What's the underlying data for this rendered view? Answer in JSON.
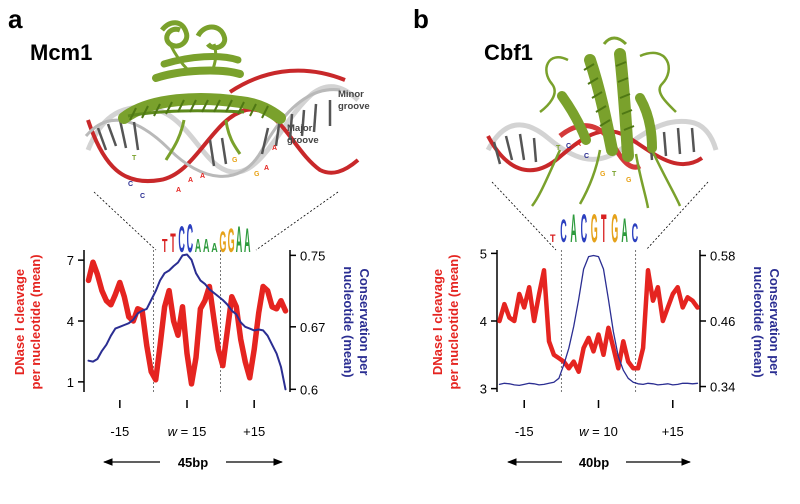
{
  "colors": {
    "dnase": "#e52420",
    "conservation": "#2b2e92",
    "protein": "#7aa12c",
    "dna_strand": "#c7c7c7",
    "dna_highlight": "#c8282a"
  },
  "panels": [
    {
      "letter": "a",
      "title": "Mcm1",
      "structure": {
        "protein_icon": "protein-helix-icon",
        "minor_groove_line1": "Minor",
        "minor_groove_line2": "groove",
        "major_groove_line1": "Major",
        "major_groove_line2": "groove",
        "bases": [
          "T",
          "C",
          "C",
          "A",
          "A",
          "A",
          "G",
          "G",
          "A",
          "A"
        ],
        "motif_logo": [
          "T",
          "T",
          "C",
          "C",
          "A",
          "A",
          "A",
          "G",
          "G",
          "A",
          "A"
        ]
      },
      "bottom_label": "45bp"
    },
    {
      "letter": "b",
      "title": "Cbf1",
      "structure": {
        "protein_icon": "protein-helix-icon",
        "bases": [
          "T",
          "C",
          "A",
          "C",
          "G",
          "T",
          "G"
        ],
        "motif_logo": [
          "T",
          "C",
          "A",
          "C",
          "G",
          "T",
          "G",
          "A",
          "C"
        ]
      },
      "bottom_label": "40bp"
    }
  ],
  "chart_data": [
    {
      "type": "line",
      "panel": "a",
      "title": "Mcm1",
      "ylabel_left_line1": "DNase I cleavage",
      "ylabel_left_line2": "per nucleotide (mean)",
      "ylabel_right_line1": "Conservation per",
      "ylabel_right_line2": "nucleotide (mean)",
      "xlim": [
        -23,
        23
      ],
      "ylim_left": [
        0.5,
        7.5
      ],
      "ylim_right": [
        0.597,
        0.756
      ],
      "x_ticks": [
        -15,
        0,
        15
      ],
      "x_tick_labels": [
        "-15",
        "w = 15",
        "+15"
      ],
      "x_tick_w_prefix": "w",
      "x_tick_w_value": "= 15",
      "y_left_ticks": [
        1,
        4,
        7
      ],
      "y_left_tick_labels": [
        "1",
        "4",
        "7"
      ],
      "y_right_ticks": [
        0.6,
        0.67,
        0.75
      ],
      "y_right_tick_labels": [
        "0.6",
        "0.67",
        "0.75"
      ],
      "motif_bounds": [
        -7.5,
        7.5
      ],
      "series": [
        {
          "name": "DNase I cleavage per nucleotide (mean)",
          "axis": "left",
          "x": [
            -22,
            -21,
            -20,
            -19,
            -18,
            -17,
            -16,
            -15,
            -14,
            -13,
            -12,
            -11,
            -10,
            -9,
            -8,
            -7,
            -6,
            -5,
            -4,
            -3,
            -2,
            -1,
            0,
            1,
            2,
            3,
            4,
            5,
            6,
            7,
            8,
            9,
            10,
            11,
            12,
            13,
            14,
            15,
            16,
            17,
            18,
            19,
            20,
            21,
            22
          ],
          "values": [
            6.0,
            6.9,
            6.3,
            5.5,
            5.0,
            4.8,
            5.3,
            5.9,
            5.2,
            4.2,
            4.0,
            4.6,
            4.5,
            2.8,
            1.5,
            1.1,
            2.8,
            4.7,
            5.5,
            4.0,
            3.3,
            4.7,
            2.4,
            0.9,
            2.2,
            4.6,
            5.0,
            5.7,
            4.1,
            2.6,
            1.8,
            3.5,
            5.2,
            4.7,
            3.1,
            2.0,
            1.2,
            2.6,
            4.4,
            5.7,
            5.5,
            4.7,
            4.6,
            5.0,
            4.5
          ]
        },
        {
          "name": "Conservation per nucleotide (mean)",
          "axis": "right",
          "x": [
            -22,
            -21,
            -20,
            -19,
            -18,
            -17,
            -16,
            -15,
            -14,
            -13,
            -12,
            -11,
            -10,
            -9,
            -8,
            -7,
            -6,
            -5,
            -4,
            -3,
            -2,
            -1,
            0,
            1,
            2,
            3,
            4,
            5,
            6,
            7,
            8,
            9,
            10,
            11,
            12,
            13,
            14,
            15,
            16,
            17,
            18,
            19,
            20,
            21,
            22
          ],
          "values": [
            0.632,
            0.631,
            0.634,
            0.643,
            0.65,
            0.66,
            0.668,
            0.67,
            0.672,
            0.674,
            0.678,
            0.685,
            0.688,
            0.69,
            0.7,
            0.71,
            0.722,
            0.73,
            0.733,
            0.738,
            0.742,
            0.75,
            0.751,
            0.745,
            0.73,
            0.722,
            0.718,
            0.712,
            0.708,
            0.704,
            0.7,
            0.695,
            0.688,
            0.684,
            0.675,
            0.67,
            0.668,
            0.666,
            0.667,
            0.666,
            0.66,
            0.65,
            0.64,
            0.625,
            0.6
          ]
        }
      ]
    },
    {
      "type": "line",
      "panel": "b",
      "title": "Cbf1",
      "ylabel_left_line1": "DNase I cleavage",
      "ylabel_left_line2": "per nucleotide (mean)",
      "ylabel_right_line1": "Conservation per",
      "ylabel_right_line2": "nucleotide (mean)",
      "xlim": [
        -20.5,
        20.5
      ],
      "ylim_left": [
        2.95,
        5.05
      ],
      "ylim_right": [
        0.33,
        0.59
      ],
      "x_ticks": [
        -15,
        0,
        15
      ],
      "x_tick_labels": [
        "-15",
        "w = 10",
        "+15"
      ],
      "x_tick_w_prefix": "w",
      "x_tick_w_value": "= 10",
      "y_left_ticks": [
        3,
        4,
        5
      ],
      "y_left_tick_labels": [
        "3",
        "4",
        "5"
      ],
      "y_right_ticks": [
        0.34,
        0.46,
        0.58
      ],
      "y_right_tick_labels": [
        "0.34",
        "0.46",
        "0.58"
      ],
      "motif_bounds": [
        -7.5,
        7.5
      ],
      "series": [
        {
          "name": "DNase I cleavage per nucleotide (mean)",
          "axis": "left",
          "x": [
            -20,
            -19,
            -18,
            -17,
            -16,
            -15,
            -14,
            -13,
            -12,
            -11,
            -10,
            -9,
            -8,
            -7,
            -6,
            -5,
            -4,
            -3,
            -2,
            -1,
            0,
            1,
            2,
            3,
            4,
            5,
            6,
            7,
            8,
            9,
            10,
            11,
            12,
            13,
            14,
            15,
            16,
            17,
            18,
            19,
            20
          ],
          "values": [
            4.0,
            4.25,
            4.05,
            4.0,
            4.4,
            4.2,
            4.5,
            4.0,
            4.4,
            4.75,
            3.7,
            3.5,
            3.45,
            3.4,
            3.3,
            3.4,
            3.25,
            3.6,
            3.75,
            3.55,
            3.8,
            3.5,
            3.9,
            3.6,
            3.3,
            3.7,
            3.4,
            3.3,
            3.3,
            3.6,
            4.75,
            4.3,
            4.5,
            4.0,
            4.2,
            4.4,
            4.5,
            4.2,
            4.35,
            4.3,
            4.2
          ]
        },
        {
          "name": "Conservation per nucleotide (mean)",
          "axis": "right",
          "x": [
            -20,
            -19,
            -18,
            -17,
            -16,
            -15,
            -14,
            -13,
            -12,
            -11,
            -10,
            -9,
            -8,
            -7,
            -6,
            -5,
            -4,
            -3,
            -2,
            -1,
            0,
            1,
            2,
            3,
            4,
            5,
            6,
            7,
            8,
            9,
            10,
            11,
            12,
            13,
            14,
            15,
            16,
            17,
            18,
            19,
            20
          ],
          "values": [
            0.344,
            0.346,
            0.345,
            0.343,
            0.342,
            0.344,
            0.346,
            0.345,
            0.343,
            0.344,
            0.346,
            0.348,
            0.355,
            0.38,
            0.41,
            0.45,
            0.5,
            0.555,
            0.578,
            0.58,
            0.578,
            0.555,
            0.5,
            0.44,
            0.395,
            0.37,
            0.355,
            0.348,
            0.345,
            0.344,
            0.346,
            0.345,
            0.343,
            0.344,
            0.345,
            0.343,
            0.344,
            0.346,
            0.346,
            0.345,
            0.346
          ]
        }
      ]
    }
  ]
}
